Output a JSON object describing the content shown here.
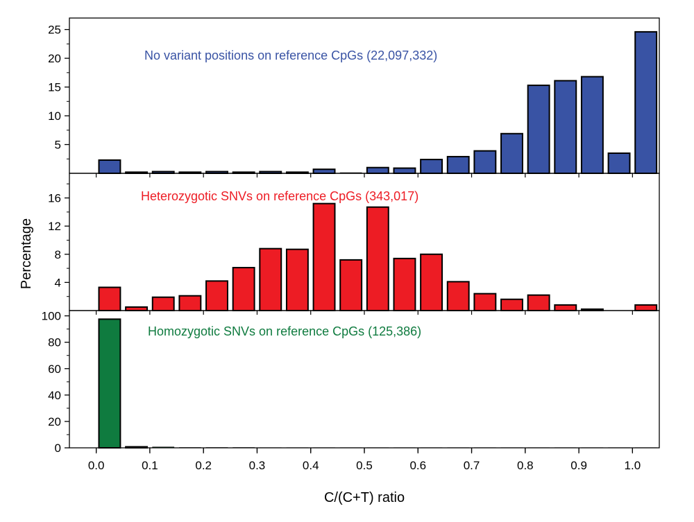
{
  "chart_data": {
    "type": "bar",
    "xlabel": "C/(C+T) ratio",
    "ylabel": "Percentage",
    "xlim": [
      -0.05,
      1.05
    ],
    "x_ticks": [
      "0.0",
      "0.1",
      "0.2",
      "0.3",
      "0.4",
      "0.5",
      "0.6",
      "0.7",
      "0.8",
      "0.9",
      "1.0"
    ],
    "bin_centers": [
      0.025,
      0.075,
      0.125,
      0.175,
      0.225,
      0.275,
      0.325,
      0.375,
      0.425,
      0.475,
      0.525,
      0.575,
      0.625,
      0.675,
      0.725,
      0.775,
      0.825,
      0.875,
      0.925,
      0.975,
      1.025
    ],
    "bar_width": 0.04,
    "panels": [
      {
        "name": "no-variant",
        "title": "No variant positions on reference CpGs (22,097,332)",
        "color": "#3953a4",
        "ylim": [
          0,
          27
        ],
        "yticks": [
          5,
          10,
          15,
          20,
          25
        ],
        "values": [
          2.3,
          0.2,
          0.3,
          0.2,
          0.3,
          0.2,
          0.3,
          0.2,
          0.7,
          0.1,
          1.0,
          0.9,
          2.4,
          2.9,
          3.9,
          6.9,
          15.3,
          16.1,
          16.8,
          3.5,
          24.6
        ]
      },
      {
        "name": "heterozygotic",
        "title": "Heterozygotic SNVs on reference CpGs (343,017)",
        "color": "#ed1c24",
        "ylim": [
          0,
          19.5
        ],
        "yticks": [
          4,
          8,
          12,
          16
        ],
        "values": [
          3.3,
          0.5,
          1.9,
          2.1,
          4.2,
          6.1,
          8.8,
          8.7,
          15.2,
          7.2,
          14.7,
          7.4,
          8.0,
          4.1,
          2.4,
          1.6,
          2.2,
          0.8,
          0.2,
          0.0,
          0.8
        ]
      },
      {
        "name": "homozygotic",
        "title": "Homozygotic SNVs on reference CpGs (125,386)",
        "color": "#0f7b3f",
        "ylim": [
          0,
          104
        ],
        "yticks": [
          0,
          20,
          40,
          60,
          80,
          100
        ],
        "values": [
          97.5,
          0.8,
          0.6,
          0.2,
          0.2,
          0.2,
          0.1,
          0.1,
          0.1,
          0.1,
          0.1,
          0.1,
          0.1,
          0.1,
          0.1,
          0.1,
          0.1,
          0.1,
          0.1,
          0.1,
          0.1
        ]
      }
    ]
  }
}
